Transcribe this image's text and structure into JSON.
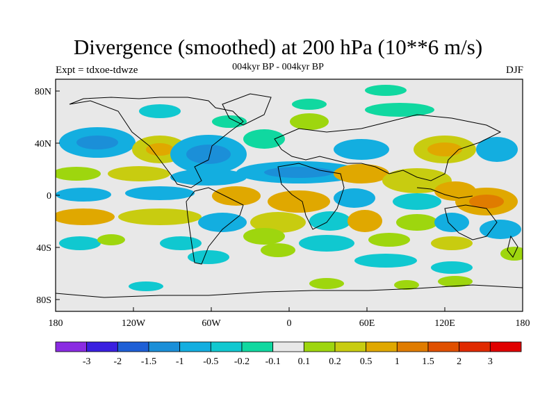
{
  "title": "Divergence (smoothed) at 200 hPa (10**6 m/s)",
  "subtitle_center": "004kyr BP - 004kyr BP",
  "subtitle_left": "Expt = tdxoe-tdwze",
  "subtitle_right": "DJF",
  "map": {
    "projection": "cylindrical equidistant",
    "longitude_ticks": [
      "180",
      "120W",
      "60W",
      "0",
      "60E",
      "120E",
      "180"
    ],
    "latitude_ticks": [
      "80N",
      "40N",
      "0",
      "40S",
      "80S"
    ],
    "background_color": "#e8e8e8"
  },
  "colorbar": {
    "labels": [
      "-3",
      "-2",
      "-1.5",
      "-1",
      "-0.5",
      "-0.2",
      "-0.1",
      "0.1",
      "0.2",
      "0.5",
      "1",
      "1.5",
      "2",
      "3"
    ],
    "colors": [
      "#8a2be2",
      "#3a1fe0",
      "#1e5fd6",
      "#1b8fd8",
      "#13aee0",
      "#10c8d0",
      "#10d8a0",
      "#e8e8e8",
      "#9ed60e",
      "#c8cc10",
      "#e0a800",
      "#e07c00",
      "#e05000",
      "#e02a00",
      "#e00000"
    ]
  }
}
